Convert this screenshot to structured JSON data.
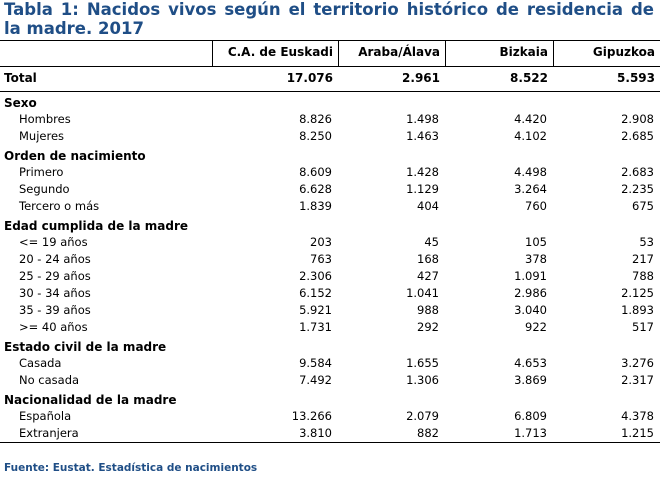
{
  "title": "Tabla 1: Nacidos vivos según el territorio histórico de residencia de la madre. 2017",
  "columns": [
    "C.A. de Euskadi",
    "Araba/Álava",
    "Bizkaia",
    "Gipuzkoa"
  ],
  "total": {
    "label": "Total",
    "values": [
      "17.076",
      "2.961",
      "8.522",
      "5.593"
    ]
  },
  "sections": [
    {
      "title": "Sexo",
      "rows": [
        {
          "label": "Hombres",
          "values": [
            "8.826",
            "1.498",
            "4.420",
            "2.908"
          ]
        },
        {
          "label": "Mujeres",
          "values": [
            "8.250",
            "1.463",
            "4.102",
            "2.685"
          ]
        }
      ]
    },
    {
      "title": "Orden de nacimiento",
      "rows": [
        {
          "label": "Primero",
          "values": [
            "8.609",
            "1.428",
            "4.498",
            "2.683"
          ]
        },
        {
          "label": "Segundo",
          "values": [
            "6.628",
            "1.129",
            "3.264",
            "2.235"
          ]
        },
        {
          "label": "Tercero o más",
          "values": [
            "1.839",
            "404",
            "760",
            "675"
          ]
        }
      ]
    },
    {
      "title": "Edad cumplida de la madre",
      "rows": [
        {
          "label": "<= 19 años",
          "values": [
            "203",
            "45",
            "105",
            "53"
          ]
        },
        {
          "label": "20 - 24 años",
          "values": [
            "763",
            "168",
            "378",
            "217"
          ]
        },
        {
          "label": "25 - 29 años",
          "values": [
            "2.306",
            "427",
            "1.091",
            "788"
          ]
        },
        {
          "label": "30 - 34 años",
          "values": [
            "6.152",
            "1.041",
            "2.986",
            "2.125"
          ]
        },
        {
          "label": "35 - 39 años",
          "values": [
            "5.921",
            "988",
            "3.040",
            "1.893"
          ]
        },
        {
          "label": ">= 40 años",
          "values": [
            "1.731",
            "292",
            "922",
            "517"
          ]
        }
      ]
    },
    {
      "title": "Estado civil de la madre",
      "rows": [
        {
          "label": "Casada",
          "values": [
            "9.584",
            "1.655",
            "4.653",
            "3.276"
          ]
        },
        {
          "label": "No casada",
          "values": [
            "7.492",
            "1.306",
            "3.869",
            "2.317"
          ]
        }
      ]
    },
    {
      "title": "Nacionalidad de la madre",
      "rows": [
        {
          "label": "Española",
          "values": [
            "13.266",
            "2.079",
            "6.809",
            "4.378"
          ]
        },
        {
          "label": "Extranjera",
          "values": [
            "3.810",
            "882",
            "1.713",
            "1.215"
          ]
        }
      ]
    }
  ],
  "source": "Fuente: Eustat. Estadística de nacimientos",
  "colors": {
    "title": "#1f4e86",
    "rule": "#000000"
  }
}
